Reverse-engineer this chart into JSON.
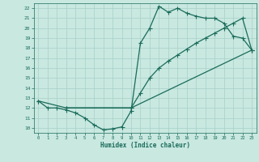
{
  "xlabel": "Humidex (Indice chaleur)",
  "bg_color": "#c8e8e0",
  "line_color": "#1a6b5a",
  "grid_color": "#a8d0c8",
  "xlim": [
    -0.5,
    23.5
  ],
  "ylim": [
    9.5,
    22.5
  ],
  "xticks": [
    0,
    1,
    2,
    3,
    4,
    5,
    6,
    7,
    8,
    9,
    10,
    11,
    12,
    13,
    14,
    15,
    16,
    17,
    18,
    19,
    20,
    21,
    22,
    23
  ],
  "yticks": [
    10,
    11,
    12,
    13,
    14,
    15,
    16,
    17,
    18,
    19,
    20,
    21,
    22
  ],
  "line1_x": [
    0,
    1,
    2,
    3,
    4,
    5,
    6,
    7,
    8,
    9,
    10,
    11,
    12,
    13,
    14,
    15,
    16,
    17,
    18,
    19,
    20,
    21,
    22,
    23
  ],
  "line1_y": [
    12.7,
    12.0,
    12.0,
    11.8,
    11.5,
    11.0,
    10.3,
    9.8,
    9.9,
    10.1,
    11.7,
    18.5,
    20.0,
    22.2,
    21.6,
    22.0,
    21.5,
    21.2,
    21.0,
    21.0,
    20.5,
    19.2,
    19.0,
    17.8
  ],
  "line2_x": [
    0,
    3,
    10,
    11,
    12,
    13,
    14,
    15,
    16,
    17,
    18,
    19,
    20,
    21,
    22,
    23
  ],
  "line2_y": [
    12.7,
    12.0,
    12.0,
    13.5,
    15.0,
    16.0,
    16.7,
    17.3,
    17.9,
    18.5,
    19.0,
    19.5,
    20.0,
    20.5,
    21.0,
    17.8
  ],
  "line3_x": [
    3,
    10,
    23
  ],
  "line3_y": [
    12.0,
    12.0,
    17.8
  ]
}
